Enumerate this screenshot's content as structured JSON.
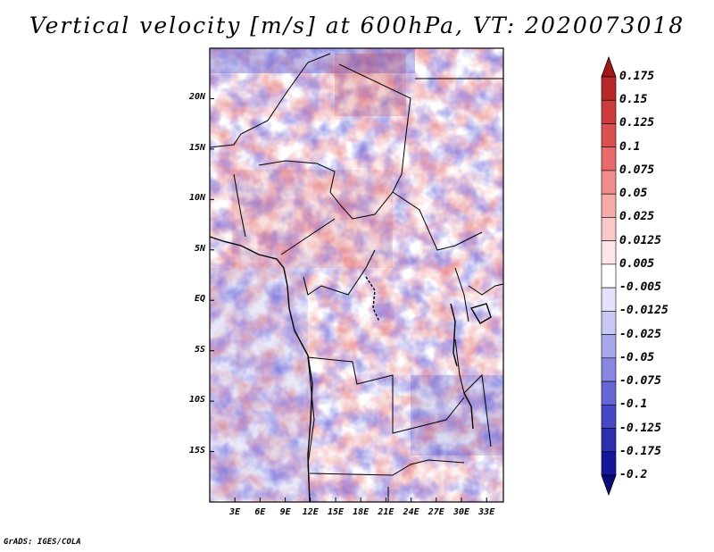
{
  "title": "Vertical velocity [m/s] at 600hPa, VT: 2020073018",
  "credit": "GrADS: IGES/COLA",
  "map": {
    "lat_range": [
      -20,
      25
    ],
    "lon_range": [
      0,
      35
    ],
    "lat_ticks": [
      "20N",
      "15N",
      "10N",
      "5N",
      "EQ",
      "5S",
      "10S",
      "15S"
    ],
    "lon_ticks": [
      "3E",
      "6E",
      "9E",
      "12E",
      "15E",
      "18E",
      "21E",
      "24E",
      "27E",
      "30E",
      "33E"
    ]
  },
  "colorbar": {
    "labels": [
      "0.175",
      "0.15",
      "0.125",
      "0.1",
      "0.075",
      "0.05",
      "0.025",
      "0.0125",
      "0.005",
      "-0.005",
      "-0.0125",
      "-0.025",
      "-0.05",
      "-0.075",
      "-0.1",
      "-0.125",
      "-0.175",
      "-0.2"
    ],
    "colors": [
      "#a01818",
      "#b82828",
      "#cc3c3c",
      "#dc5050",
      "#e86a6a",
      "#f08c8c",
      "#f6aaaa",
      "#fac8c8",
      "#fde6e6",
      "#ffffff",
      "#e2e2fa",
      "#c8c8f4",
      "#a8a8ec",
      "#8888e2",
      "#6666d6",
      "#4848c6",
      "#2e2eb0",
      "#16169a",
      "#0a0a78"
    ]
  }
}
